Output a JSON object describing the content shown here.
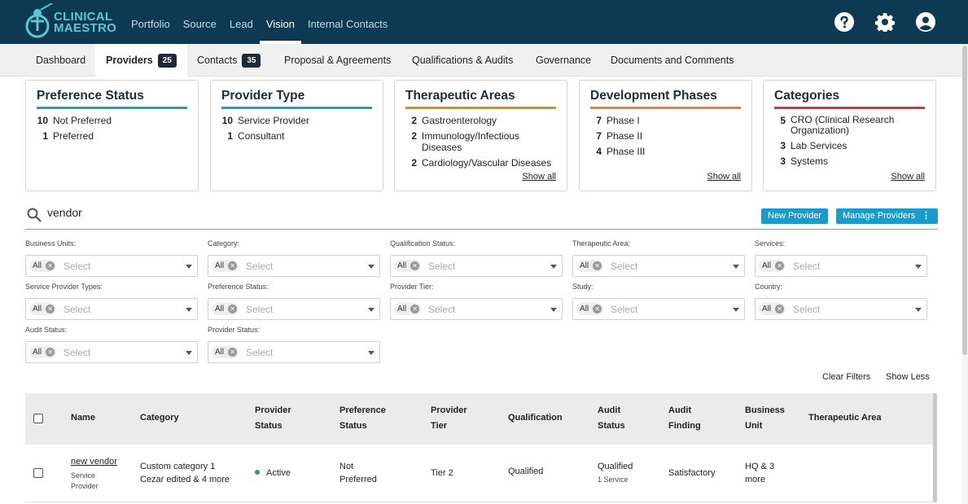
{
  "app": {
    "logo_line1": "CLINICAL",
    "logo_line2": "MAESTRO"
  },
  "top_nav": [
    "Portfolio",
    "Source",
    "Lead",
    "Vision",
    "Internal Contacts"
  ],
  "top_nav_active": "Vision",
  "sub_nav": {
    "dashboard": "Dashboard",
    "providers": "Providers",
    "providers_count": "25",
    "contacts": "Contacts",
    "contacts_count": "35",
    "proposal": "Proposal & Agreements",
    "qualifications": "Qualifications & Audits",
    "governance": "Governance",
    "documents": "Documents and Comments"
  },
  "cards": {
    "preference": {
      "title": "Preference Status",
      "color": "#1fa5a0",
      "items": [
        {
          "n": "10",
          "label": "Not Preferred"
        },
        {
          "n": "1",
          "label": "Preferred"
        }
      ]
    },
    "provider_type": {
      "title": "Provider Type",
      "color": "#1f9fc8",
      "items": [
        {
          "n": "10",
          "label": "Service Provider"
        },
        {
          "n": "1",
          "label": "Consultant"
        }
      ]
    },
    "therapeutic": {
      "title": "Therapeutic Areas",
      "color": "#c8961f",
      "items": [
        {
          "n": "2",
          "label": "Gastroenterology"
        },
        {
          "n": "2",
          "label": "Immunology/Infectious Diseases"
        },
        {
          "n": "2",
          "label": "Cardiology/Vascular Diseases"
        }
      ],
      "show_all": "Show all"
    },
    "phases": {
      "title": "Development Phases",
      "color": "#e3803a",
      "items": [
        {
          "n": "7",
          "label": "Phase I"
        },
        {
          "n": "7",
          "label": "Phase II"
        },
        {
          "n": "4",
          "label": "Phase III"
        }
      ],
      "show_all": "Show all"
    },
    "categories": {
      "title": "Categories",
      "color": "#d23a3a",
      "items": [
        {
          "n": "5",
          "label": "CRO (Clinical Research Organization)"
        },
        {
          "n": "3",
          "label": "Lab Services"
        },
        {
          "n": "3",
          "label": "Systems"
        }
      ],
      "show_all": "Show all"
    }
  },
  "search": {
    "value": "vendor"
  },
  "buttons": {
    "new_provider": "New Provider",
    "manage_providers": "Manage Providers"
  },
  "filters": {
    "chip": "All",
    "placeholder": "Select",
    "business_units": "Business Units:",
    "category": "Category:",
    "qualification_status": "Qualification Status:",
    "therapeutic_area": "Therapeutic Area:",
    "services": "Services:",
    "service_provider_types": "Service Provider Types:",
    "preference_status": "Preference Status:",
    "provider_tier": "Provider Tier:",
    "study": "Study:",
    "country": "Country:",
    "audit_status": "Audit Status:",
    "provider_status": "Provider Status:"
  },
  "filter_actions": {
    "clear": "Clear Filters",
    "show_less": "Show Less"
  },
  "table": {
    "headers": {
      "name": "Name",
      "category": "Category",
      "provider_status_1": "Provider",
      "provider_status_2": "Status",
      "preference_status_1": "Preference",
      "preference_status_2": "Status",
      "provider_tier_1": "Provider",
      "provider_tier_2": "Tier",
      "qualification": "Qualification",
      "audit_status_1": "Audit",
      "audit_status_2": "Status",
      "audit_finding_1": "Audit",
      "audit_finding_2": "Finding",
      "business_unit_1": "Business",
      "business_unit_2": "Unit",
      "therapeutic_area": "Therapeutic Area"
    },
    "rows": [
      {
        "name": "new vendor",
        "type_1": "Service",
        "type_2": "Provider",
        "category_1": "Custom category 1",
        "category_2": "Cezar edited & 4 more",
        "provider_status": "Active",
        "preference_1": "Not",
        "preference_2": "Preferred",
        "tier": "Tier 2",
        "qualification": "Qualified",
        "audit_status": "Qualified",
        "audit_sub": "1 Service",
        "audit_finding": "Satisfactory",
        "business_unit_1": "HQ & 3",
        "business_unit_2": "more",
        "therapeutic_area": ""
      }
    ]
  }
}
